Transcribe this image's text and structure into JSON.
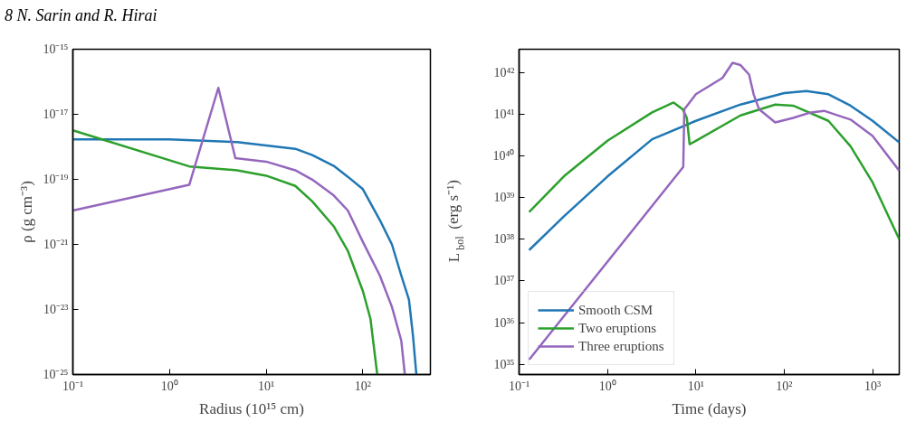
{
  "chart_data": [
    {
      "type": "line",
      "annotations": [
        "8    N. Sarin and R. Hirai"
      ],
      "xlabel": "Radius (10¹⁵ cm)",
      "ylabel": "ρ (g cm⁻³)",
      "log": "xy",
      "grid": false,
      "legend": false,
      "xlim": [
        0.1,
        500
      ],
      "ylim": [
        1e-25,
        1e-15
      ],
      "xticks": [
        {
          "value": 0.1,
          "label": "10⁻¹"
        },
        {
          "value": 1,
          "label": "10⁰"
        },
        {
          "value": 10,
          "label": "10¹"
        },
        {
          "value": 100,
          "label": "10²"
        }
      ],
      "yticks": [
        {
          "value": 1e-25,
          "label": "10⁻²⁵"
        },
        {
          "value": 1e-23,
          "label": "10⁻²³"
        },
        {
          "value": 1e-21,
          "label": "10⁻²¹"
        },
        {
          "value": 1e-19,
          "label": "10⁻¹⁹"
        },
        {
          "value": 1e-17,
          "label": "10⁻¹⁷"
        },
        {
          "value": 1e-15,
          "label": "10⁻¹⁵"
        }
      ],
      "series": [
        {
          "color": "#1f77b4",
          "x": [
            0.1,
            1,
            5,
            10,
            20,
            30,
            50,
            70,
            100,
            150,
            200,
            250,
            300,
            330,
            358
          ],
          "values": [
            1.7e-18,
            1.7e-18,
            1.4e-18,
            1.1e-18,
            8.7e-19,
            5.6e-19,
            2.6e-19,
            1.2e-19,
            5e-20,
            5.6e-21,
            1e-21,
            1.1e-22,
            2e-23,
            1.6e-24,
            1e-25
          ]
        },
        {
          "color": "#2ca02c",
          "x": [
            0.1,
            1.6,
            5,
            10,
            20,
            30,
            50,
            70,
            100,
            120,
            141
          ],
          "values": [
            3.2e-18,
            2.5e-19,
            1.9e-19,
            1.3e-19,
            6.3e-20,
            2.1e-20,
            3.6e-21,
            6.3e-22,
            3.7e-23,
            5.1e-24,
            1e-25
          ]
        },
        {
          "color": "#9467bd",
          "x": [
            0.1,
            1.6,
            3.2,
            4.8,
            10,
            20,
            30,
            50,
            70,
            100,
            150,
            200,
            250,
            272
          ],
          "values": [
            1.1e-20,
            6.8e-20,
            6.5e-17,
            4.5e-19,
            3.5e-19,
            1.9e-19,
            9.8e-20,
            3.2e-20,
            1.1e-20,
            1.2e-21,
            1.1e-22,
            1.2e-23,
            1.1e-24,
            1e-25
          ]
        }
      ]
    },
    {
      "type": "line",
      "xlabel": "Time (days)",
      "ylabel": "L$_{bol}$ (erg s⁻¹)",
      "log": "xy",
      "grid": false,
      "legend": "bottom left",
      "xlim": [
        0.1,
        2000
      ],
      "ylim": [
        5.7e+34,
        3.6e+42
      ],
      "xticks": [
        {
          "value": 0.1,
          "label": "10⁻¹"
        },
        {
          "value": 1,
          "label": "10⁰"
        },
        {
          "value": 10,
          "label": "10¹"
        },
        {
          "value": 100,
          "label": "10²"
        },
        {
          "value": 1000,
          "label": "10³"
        }
      ],
      "yticks": [
        {
          "value": 1e+35,
          "label": "10³⁵"
        },
        {
          "value": 1e+36,
          "label": "10³⁶"
        },
        {
          "value": 1e+37,
          "label": "10³⁷"
        },
        {
          "value": 1e+38,
          "label": "10³⁸"
        },
        {
          "value": 1e+39,
          "label": "10³⁹"
        },
        {
          "value": 1e+40,
          "label": "10⁴⁰"
        },
        {
          "value": 1e+41,
          "label": "10⁴¹"
        },
        {
          "value": 1e+42,
          "label": "10⁴²"
        }
      ],
      "series": [
        {
          "name": "Smooth CSM",
          "color": "#1f77b4",
          "x": [
            0.13,
            0.32,
            1,
            3.2,
            10,
            32,
            100,
            178,
            316,
            562,
            1000,
            2000
          ],
          "values": [
            5.5e+37,
            3.5e+38,
            3.2e+39,
            2.5e+40,
            6.9e+40,
            1.7e+41,
            3.2e+41,
            3.6e+41,
            3e+41,
            1.6e+41,
            6.9e+40,
            2.1e+40
          ]
        },
        {
          "name": "Two eruptions",
          "color": "#2ca02c",
          "x": [
            0.13,
            0.32,
            1,
            3.2,
            5.6,
            7.1,
            7.9,
            8.5,
            10,
            32,
            79,
            126,
            316,
            562,
            1000,
            2000
          ],
          "values": [
            4.5e+38,
            3.2e+39,
            2.3e+40,
            1.1e+41,
            1.9e+41,
            1.3e+41,
            8.1e+40,
            1.9e+40,
            2.3e+40,
            9.3e+40,
            1.7e+41,
            1.6e+41,
            6.9e+40,
            1.7e+40,
            2.3e+39,
            1e+38
          ]
        },
        {
          "name": "Three eruptions",
          "color": "#9467bd",
          "x": [
            0.13,
            7.2,
            7.4,
            10,
            20,
            26,
            32,
            40,
            45,
            52,
            79,
            126,
            200,
            282,
            562,
            1000,
            2000
          ],
          "values": [
            1.3e+35,
            5.4e+39,
            1.3e+41,
            3e+41,
            7.4e+41,
            1.7e+42,
            1.5e+42,
            8.9e+41,
            3e+41,
            1.3e+41,
            6.3e+40,
            8.1e+40,
            1.1e+41,
            1.2e+41,
            7.4e+40,
            3e+40,
            4.4e+39
          ]
        }
      ]
    }
  ]
}
